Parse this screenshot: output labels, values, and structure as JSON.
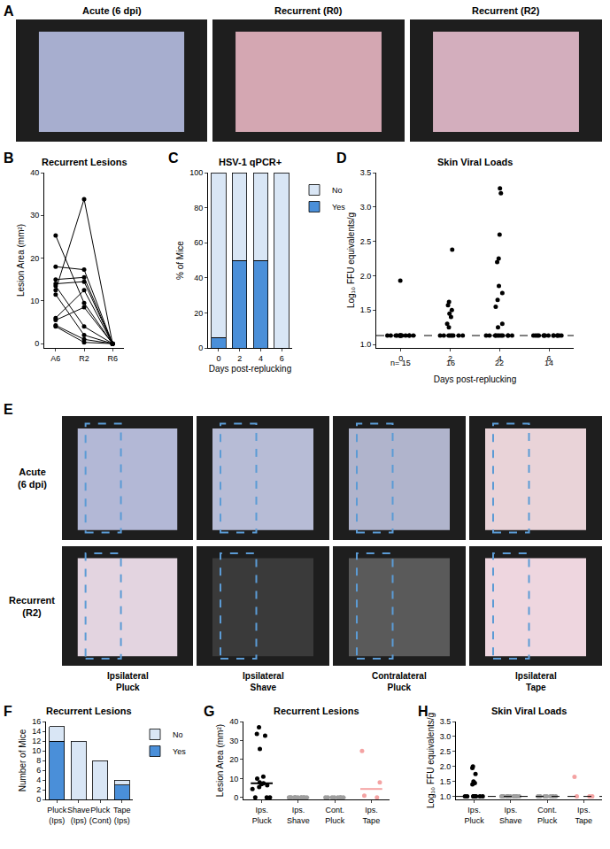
{
  "panels": [
    {
      "panel": "A",
      "type": "photo_row",
      "columns": [
        "Acute (6 dpi)",
        "Recurrent (R0)",
        "Recurrent (R2)"
      ]
    },
    {
      "panel": "E",
      "type": "photo_grid",
      "rows": [
        "Acute (6 dpi)",
        "Recurrent (R2)"
      ],
      "columns": [
        "Ipsilateral Pluck",
        "Ipsilateral Shave",
        "Contralateral Pluck",
        "Ipsilateral Tape"
      ]
    }
  ],
  "chart_data": [
    {
      "panel": "B",
      "type": "line",
      "title": "Recurrent Lesions",
      "categories": [
        "A6",
        "R2",
        "R6"
      ],
      "ylabel": "Lesion Area (mm²)",
      "ylim": [
        -1,
        40
      ],
      "yticks": [
        0,
        10,
        20,
        30,
        40
      ],
      "color": "#000000",
      "marker": "circle",
      "series": [
        {
          "values": [
            25.3,
            9.5,
            0
          ]
        },
        {
          "values": [
            18,
            17.3,
            0
          ]
        },
        {
          "values": [
            15,
            15.5,
            0
          ]
        },
        {
          "values": [
            14,
            14.5,
            0
          ]
        },
        {
          "values": [
            13.5,
            4,
            0
          ]
        },
        {
          "values": [
            12.5,
            33.8,
            0
          ]
        },
        {
          "values": [
            11.5,
            2,
            0
          ]
        },
        {
          "values": [
            6,
            12.5,
            0
          ]
        },
        {
          "values": [
            5.5,
            8.5,
            0
          ]
        },
        {
          "values": [
            4.3,
            1,
            0
          ]
        },
        {
          "values": [
            4,
            0.3,
            0
          ]
        }
      ]
    },
    {
      "panel": "C",
      "type": "bar",
      "stacked": true,
      "title": "HSV-1 qPCR+",
      "categories": [
        "0",
        "2",
        "4",
        "6"
      ],
      "xlabel": "Days post-replucking",
      "ylabel": "% of Mice",
      "ylim": [
        0,
        100
      ],
      "yticks": [
        0,
        20,
        40,
        60,
        80,
        100
      ],
      "legend": "right",
      "series": [
        {
          "name": "Yes",
          "color": "#4a8fd9",
          "values": [
            6,
            50,
            50,
            0
          ]
        },
        {
          "name": "No",
          "color": "#d9e6f5",
          "values": [
            94,
            50,
            50,
            100
          ]
        }
      ]
    },
    {
      "panel": "D",
      "type": "scatter",
      "title": "Skin Viral Loads",
      "xlabel": "Days post-replucking",
      "ylabel": "Log₁₀ FFU equivalents/g",
      "xlim": [
        -1,
        7
      ],
      "xticks": [
        0,
        2,
        4,
        6
      ],
      "ylim": [
        0.95,
        3.5
      ],
      "yticks": [
        {
          "value": 1,
          "label": "1.0"
        },
        {
          "value": 1.5,
          "label": "1.5"
        },
        {
          "value": 2,
          "label": "2.0"
        },
        {
          "value": 2.5,
          "label": "2.5"
        },
        {
          "value": 3,
          "label": "3.0"
        },
        {
          "value": 3.5,
          "label": "3.5"
        }
      ],
      "color": "#000000",
      "detection_limit": 1.13,
      "groups": [
        {
          "x": 0,
          "values": [
            1.93,
            1.13,
            1.13,
            1.13,
            1.13,
            1.13,
            1.13,
            1.13,
            1.13,
            1.13,
            1.13,
            1.13,
            1.13,
            1.13,
            1.13
          ]
        },
        {
          "x": 2,
          "values": [
            2.38,
            1.62,
            1.57,
            1.5,
            1.45,
            1.4,
            1.3,
            1.25,
            1.13,
            1.13,
            1.13,
            1.13,
            1.13,
            1.13,
            1.13,
            1.13
          ]
        },
        {
          "x": 4,
          "values": [
            3.27,
            3.2,
            2.6,
            2.25,
            2.2,
            1.85,
            1.75,
            1.65,
            1.55,
            1.3,
            1.25,
            1.13,
            1.13,
            1.13,
            1.13,
            1.13,
            1.13,
            1.13,
            1.13,
            1.13,
            1.13,
            1.13
          ]
        },
        {
          "x": 6,
          "values": [
            1.13,
            1.13,
            1.13,
            1.13,
            1.13,
            1.13,
            1.13,
            1.13,
            1.13,
            1.13,
            1.13,
            1.13,
            1.13,
            1.13
          ]
        }
      ],
      "annotations": [
        {
          "x": 0,
          "text": "n= 15"
        },
        {
          "x": 2,
          "text": "16"
        },
        {
          "x": 4,
          "text": "22"
        },
        {
          "x": 6,
          "text": "14"
        }
      ]
    },
    {
      "panel": "F",
      "type": "bar",
      "stacked": true,
      "title": "Recurrent Lesions",
      "categories": [
        "Pluck (Ips)",
        "Shave (Ips)",
        "Pluck (Cont)",
        "Tape (Ips)"
      ],
      "ylabel": "Number of Mice",
      "ylim": [
        0,
        16
      ],
      "yticks": [
        0,
        2,
        4,
        6,
        8,
        10,
        12,
        14,
        16
      ],
      "legend": "right",
      "series": [
        {
          "name": "Yes",
          "color": "#4a8fd9",
          "values": [
            12,
            0,
            0,
            3
          ]
        },
        {
          "name": "No",
          "color": "#d9e6f5",
          "values": [
            3,
            12,
            8,
            1
          ]
        }
      ]
    },
    {
      "panel": "G",
      "type": "scatter",
      "title": "Recurrent Lesions",
      "categories": [
        "Ips. Pluck",
        "Ips. Shave",
        "Cont. Pluck",
        "Ips. Tape"
      ],
      "ylabel": "Lesion Area (mm²)",
      "ylim": [
        -1,
        40
      ],
      "yticks": [
        0,
        10,
        20,
        30,
        40
      ],
      "colors": [
        "#000000",
        "#9e9e9e",
        "#9e9e9e",
        "#f4a3a3"
      ],
      "groups": [
        {
          "values": [
            37,
            33.5,
            32.5,
            25.5,
            11,
            10,
            8,
            7.5,
            7,
            6.5,
            5.5,
            4.5,
            0,
            0,
            0
          ]
        },
        {
          "values": [
            0,
            0,
            0,
            0,
            0,
            0,
            0,
            0,
            0,
            0,
            0,
            0
          ]
        },
        {
          "values": [
            0,
            0,
            0,
            0,
            0,
            0,
            0,
            0
          ]
        },
        {
          "values": [
            24.5,
            8,
            1,
            0
          ]
        }
      ],
      "medians": [
        7.5,
        0,
        0,
        4.5
      ]
    },
    {
      "panel": "H",
      "type": "scatter",
      "title": "Skin Viral Loads",
      "categories": [
        "Ips. Pluck",
        "Ips. Shave",
        "Cont. Pluck",
        "Ips. Tape"
      ],
      "ylabel": "Log₁₀ FFU equivalents/g",
      "ylim": [
        0.9,
        3.5
      ],
      "yticks": [
        {
          "value": 1,
          "label": "1.0"
        },
        {
          "value": 1.5,
          "label": "1.5"
        },
        {
          "value": 2,
          "label": "2.0"
        },
        {
          "value": 2.5,
          "label": "2.5"
        },
        {
          "value": 3,
          "label": "3.0"
        },
        {
          "value": 3.5,
          "label": "3.5"
        }
      ],
      "colors": [
        "#000000",
        "#9e9e9e",
        "#9e9e9e",
        "#f4a3a3"
      ],
      "detection_limit": 1,
      "groups": [
        {
          "values": [
            2,
            1.95,
            1.75,
            1.5,
            1.45,
            1.4,
            1,
            1,
            1,
            1,
            1,
            1,
            1,
            1,
            1
          ]
        },
        {
          "values": [
            1,
            1,
            1,
            1,
            1,
            1,
            1,
            1,
            1,
            1,
            1,
            1
          ]
        },
        {
          "values": [
            1,
            1,
            1,
            1,
            1,
            1,
            1,
            1
          ]
        },
        {
          "values": [
            1.65,
            1,
            1,
            1
          ]
        }
      ]
    }
  ]
}
